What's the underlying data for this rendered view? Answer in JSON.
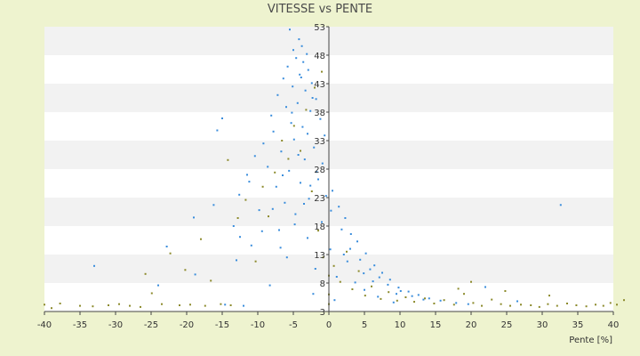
{
  "chart_data": {
    "type": "scatter",
    "title": "VITESSE vs PENTE",
    "xlabel": "Pente [%]",
    "ylabel": "",
    "xlim": [
      -40,
      40
    ],
    "ylim": [
      3,
      53
    ],
    "x_ticks": [
      -40,
      -35,
      -30,
      -25,
      -20,
      -15,
      -10,
      -5,
      0,
      5,
      10,
      15,
      20,
      25,
      30,
      35,
      40
    ],
    "y_ticks": [
      3,
      8,
      13,
      18,
      23,
      28,
      33,
      38,
      43,
      48,
      53
    ],
    "grid": "horizontal alternating bands",
    "legend": "none",
    "colors": {
      "blue_series": "#3a8ddc",
      "olive_series": "#8c8a2c",
      "band_light": "#ffffff",
      "band_dark": "#f2f2f2",
      "background": "#eef3cf"
    },
    "series": [
      {
        "color": "#3a8ddc",
        "points": [
          [
            -5.5,
            52.5
          ],
          [
            -4.2,
            50.8
          ],
          [
            -3.8,
            49.6
          ],
          [
            -5.0,
            48.9
          ],
          [
            -3.1,
            48.2
          ],
          [
            -4.6,
            47.5
          ],
          [
            -3.6,
            46.8
          ],
          [
            -5.8,
            46.0
          ],
          [
            -2.9,
            45.4
          ],
          [
            -4.1,
            44.6
          ],
          [
            -6.4,
            43.9
          ],
          [
            -2.4,
            43.1
          ],
          [
            -5.1,
            42.5
          ],
          [
            -3.3,
            41.8
          ],
          [
            -7.2,
            41.0
          ],
          [
            -1.8,
            40.3
          ],
          [
            -4.4,
            39.6
          ],
          [
            -6.0,
            38.9
          ],
          [
            -2.6,
            38.2
          ],
          [
            -8.1,
            37.4
          ],
          [
            -1.2,
            36.8
          ],
          [
            -5.3,
            36.1
          ],
          [
            -3.7,
            35.4
          ],
          [
            -7.8,
            34.6
          ],
          [
            -0.6,
            33.9
          ],
          [
            -4.9,
            33.2
          ],
          [
            -9.2,
            32.5
          ],
          [
            -2.1,
            31.8
          ],
          [
            -6.7,
            31.1
          ],
          [
            -10.4,
            30.3
          ],
          [
            -3.4,
            29.7
          ],
          [
            -0.9,
            29.0
          ],
          [
            -8.6,
            28.4
          ],
          [
            -5.6,
            27.7
          ],
          [
            -11.5,
            27.0
          ],
          [
            -1.5,
            26.2
          ],
          [
            -4.0,
            25.6
          ],
          [
            -7.4,
            24.9
          ],
          [
            0.5,
            24.2
          ],
          [
            -12.6,
            23.5
          ],
          [
            -2.8,
            22.8
          ],
          [
            -6.2,
            22.1
          ],
          [
            1.4,
            21.4
          ],
          [
            -9.8,
            20.8
          ],
          [
            -4.7,
            20.1
          ],
          [
            2.3,
            19.4
          ],
          [
            -1.0,
            18.7
          ],
          [
            -13.4,
            18.0
          ],
          [
            -7.0,
            17.3
          ],
          [
            3.1,
            16.6
          ],
          [
            -3.0,
            15.9
          ],
          [
            4.0,
            15.3
          ],
          [
            -10.9,
            14.6
          ],
          [
            0.2,
            13.9
          ],
          [
            5.2,
            13.2
          ],
          [
            -5.9,
            12.5
          ],
          [
            2.6,
            11.8
          ],
          [
            6.4,
            11.1
          ],
          [
            -1.9,
            10.5
          ],
          [
            7.5,
            9.8
          ],
          [
            1.1,
            9.1
          ],
          [
            8.6,
            8.6
          ],
          [
            3.7,
            8.1
          ],
          [
            -8.3,
            7.6
          ],
          [
            9.8,
            7.2
          ],
          [
            5.0,
            6.8
          ],
          [
            11.2,
            6.5
          ],
          [
            -2.2,
            6.1
          ],
          [
            12.6,
            5.9
          ],
          [
            6.9,
            5.6
          ],
          [
            14.1,
            5.3
          ],
          [
            0.8,
            5.0
          ],
          [
            15.7,
            4.9
          ],
          [
            9.1,
            4.6
          ],
          [
            17.9,
            4.5
          ],
          [
            -14.6,
            4.2
          ],
          [
            19.6,
            4.3
          ],
          [
            -18.8,
            9.5
          ],
          [
            -22.8,
            14.4
          ],
          [
            -24.0,
            7.6
          ],
          [
            -33.0,
            11.0
          ],
          [
            -15.7,
            34.8
          ],
          [
            -15.0,
            36.9
          ],
          [
            -19.0,
            19.5
          ],
          [
            -16.2,
            21.7
          ],
          [
            -12.5,
            16.1
          ],
          [
            32.6,
            21.7
          ],
          [
            26.5,
            4.8
          ],
          [
            22.0,
            7.3
          ],
          [
            -12.0,
            4.0
          ],
          [
            -6.5,
            26.9
          ],
          [
            -4.3,
            30.5
          ],
          [
            -3.0,
            34.2
          ],
          [
            -5.2,
            37.9
          ],
          [
            -2.3,
            40.5
          ],
          [
            -3.9,
            44.1
          ],
          [
            -1.7,
            27.5
          ],
          [
            0.3,
            20.7
          ],
          [
            1.8,
            17.4
          ],
          [
            3.0,
            14.0
          ],
          [
            4.4,
            12.1
          ],
          [
            5.8,
            10.4
          ],
          [
            7.1,
            9.0
          ],
          [
            8.3,
            7.7
          ],
          [
            10.1,
            6.6
          ],
          [
            11.7,
            5.7
          ],
          [
            13.3,
            5.1
          ],
          [
            -0.4,
            23.3
          ],
          [
            -2.6,
            25.1
          ],
          [
            -7.9,
            21.0
          ],
          [
            -9.4,
            17.1
          ],
          [
            -11.2,
            25.8
          ],
          [
            -13.0,
            12.0
          ],
          [
            -6.8,
            14.2
          ],
          [
            -4.8,
            18.3
          ],
          [
            -3.5,
            21.9
          ],
          [
            2.1,
            13.0
          ],
          [
            4.9,
            9.7
          ],
          [
            6.2,
            8.3
          ],
          [
            9.5,
            6.1
          ]
        ]
      },
      {
        "color": "#8c8a2c",
        "points": [
          [
            -40.0,
            4.2
          ],
          [
            -39.0,
            3.6
          ],
          [
            -37.8,
            4.4
          ],
          [
            -35.0,
            4.0
          ],
          [
            -33.2,
            3.9
          ],
          [
            -31.0,
            4.1
          ],
          [
            -29.5,
            4.3
          ],
          [
            -28.0,
            4.0
          ],
          [
            -26.5,
            3.8
          ],
          [
            -25.8,
            9.6
          ],
          [
            -24.9,
            6.2
          ],
          [
            -23.5,
            4.3
          ],
          [
            -22.3,
            13.2
          ],
          [
            -21.0,
            4.1
          ],
          [
            -20.2,
            10.3
          ],
          [
            -19.5,
            4.2
          ],
          [
            -18.0,
            15.7
          ],
          [
            -17.4,
            4.0
          ],
          [
            -16.6,
            8.4
          ],
          [
            -15.2,
            4.3
          ],
          [
            -14.2,
            29.6
          ],
          [
            -13.8,
            4.1
          ],
          [
            -12.8,
            19.4
          ],
          [
            -11.7,
            22.6
          ],
          [
            -10.3,
            11.8
          ],
          [
            -9.3,
            24.9
          ],
          [
            -8.5,
            19.7
          ],
          [
            -7.6,
            27.4
          ],
          [
            -6.6,
            33.0
          ],
          [
            -5.7,
            29.8
          ],
          [
            -4.9,
            35.6
          ],
          [
            -4.0,
            31.2
          ],
          [
            -3.2,
            38.4
          ],
          [
            -2.4,
            24.1
          ],
          [
            -1.5,
            17.2
          ],
          [
            -0.8,
            12.5
          ],
          [
            0.0,
            9.3
          ],
          [
            0.0,
            6.0
          ],
          [
            0.0,
            4.3
          ],
          [
            0.7,
            11.0
          ],
          [
            1.6,
            8.2
          ],
          [
            2.5,
            13.5
          ],
          [
            3.3,
            6.9
          ],
          [
            4.2,
            10.1
          ],
          [
            5.1,
            5.8
          ],
          [
            6.0,
            7.4
          ],
          [
            7.3,
            5.2
          ],
          [
            8.4,
            6.4
          ],
          [
            9.6,
            4.9
          ],
          [
            10.8,
            5.5
          ],
          [
            12.0,
            4.7
          ],
          [
            13.5,
            5.3
          ],
          [
            14.8,
            4.4
          ],
          [
            16.2,
            5.0
          ],
          [
            17.6,
            4.2
          ],
          [
            19.0,
            6.1
          ],
          [
            20.3,
            4.5
          ],
          [
            21.5,
            4.0
          ],
          [
            22.9,
            5.1
          ],
          [
            24.2,
            4.3
          ],
          [
            25.5,
            4.0
          ],
          [
            27.0,
            4.2
          ],
          [
            28.4,
            4.1
          ],
          [
            29.6,
            3.8
          ],
          [
            30.8,
            4.3
          ],
          [
            32.1,
            4.0
          ],
          [
            33.5,
            4.4
          ],
          [
            34.8,
            4.1
          ],
          [
            36.2,
            3.9
          ],
          [
            37.5,
            4.2
          ],
          [
            38.6,
            4.0
          ],
          [
            39.6,
            4.5
          ],
          [
            40.5,
            4.2
          ],
          [
            41.5,
            5.0
          ],
          [
            31.0,
            5.8
          ],
          [
            24.8,
            6.6
          ],
          [
            20.0,
            8.2
          ],
          [
            18.2,
            7.0
          ],
          [
            -1.0,
            45.1
          ],
          [
            -2.0,
            42.3
          ]
        ]
      }
    ]
  }
}
